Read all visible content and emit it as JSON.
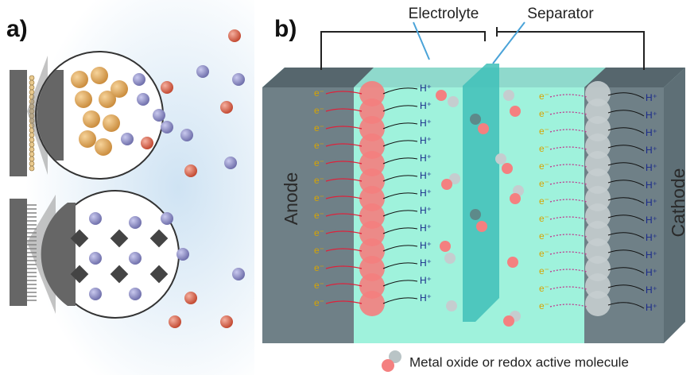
{
  "panel_a": {
    "label": "a)"
  },
  "panel_b": {
    "label": "b)",
    "electrolyte": "Electrolyte",
    "separator": "Separator",
    "anode": "Anode",
    "cathode": "Cathode",
    "electron_label": "e⁻",
    "proton_label": "H⁺"
  },
  "legend": {
    "text": "Metal oxide or redox active molecule"
  }
}
